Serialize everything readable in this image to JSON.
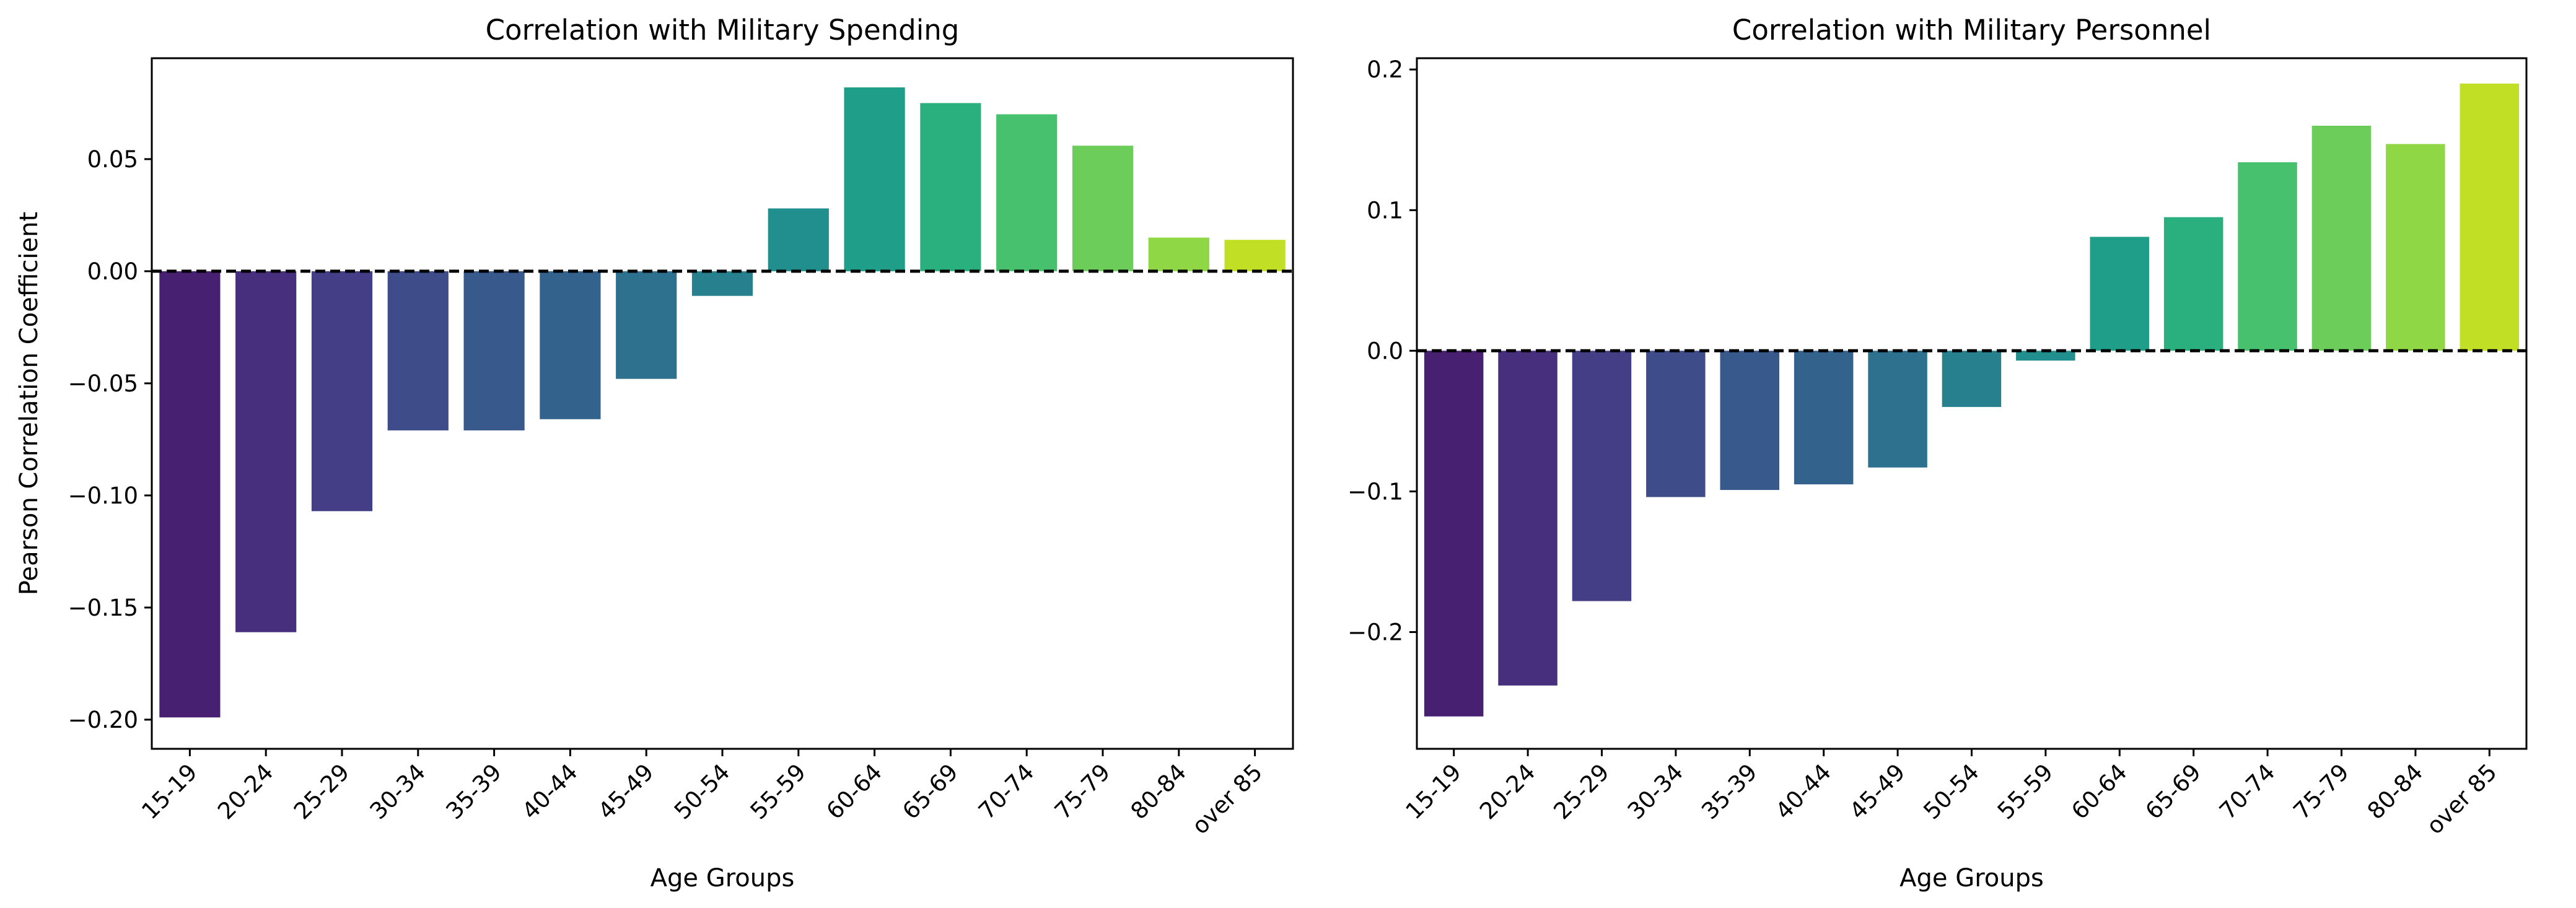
{
  "chart_data": [
    {
      "type": "bar",
      "title": "Correlation with Military Spending",
      "xlabel": "Age Groups",
      "ylabel": "Pearson Correlation Coefficient",
      "categories": [
        "15-19",
        "20-24",
        "25-29",
        "30-34",
        "35-39",
        "40-44",
        "45-49",
        "50-54",
        "55-59",
        "60-64",
        "65-69",
        "70-74",
        "75-79",
        "80-84",
        "over 85"
      ],
      "values": [
        -0.199,
        -0.161,
        -0.107,
        -0.071,
        -0.071,
        -0.066,
        -0.048,
        -0.011,
        0.028,
        0.082,
        0.075,
        0.07,
        0.056,
        0.015,
        0.014
      ],
      "ylim": [
        -0.213,
        0.095
      ],
      "yticks": [
        -0.2,
        -0.15,
        -0.1,
        -0.05,
        0.0,
        0.05
      ],
      "ytick_labels": [
        "−0.20",
        "−0.15",
        "−0.10",
        "−0.05",
        "0.00",
        "0.05"
      ],
      "reference_line": 0,
      "grid": false,
      "colormap": "viridis"
    },
    {
      "type": "bar",
      "title": "Correlation with Military Personnel",
      "xlabel": "Age Groups",
      "ylabel": "",
      "categories": [
        "15-19",
        "20-24",
        "25-29",
        "30-34",
        "35-39",
        "40-44",
        "45-49",
        "50-54",
        "55-59",
        "60-64",
        "65-69",
        "70-74",
        "75-79",
        "80-84",
        "over 85"
      ],
      "values": [
        -0.26,
        -0.238,
        -0.178,
        -0.104,
        -0.099,
        -0.095,
        -0.083,
        -0.04,
        -0.007,
        0.081,
        0.095,
        0.134,
        0.16,
        0.147,
        0.19
      ],
      "ylim": [
        -0.283,
        0.208
      ],
      "yticks": [
        -0.2,
        -0.1,
        0.0,
        0.1,
        0.2
      ],
      "ytick_labels": [
        "−0.2",
        "−0.1",
        "0.0",
        "0.1",
        "0.2"
      ],
      "reference_line": 0,
      "grid": false,
      "colormap": "viridis"
    }
  ],
  "colors": [
    "#482072",
    "#472f7d",
    "#433e85",
    "#3e4c8a",
    "#38598c",
    "#33638d",
    "#2d718e",
    "#27808e",
    "#218f8d",
    "#1f9e89",
    "#2ab07f",
    "#48c16e",
    "#6ccd5a",
    "#8fd744",
    "#c1df24"
  ]
}
